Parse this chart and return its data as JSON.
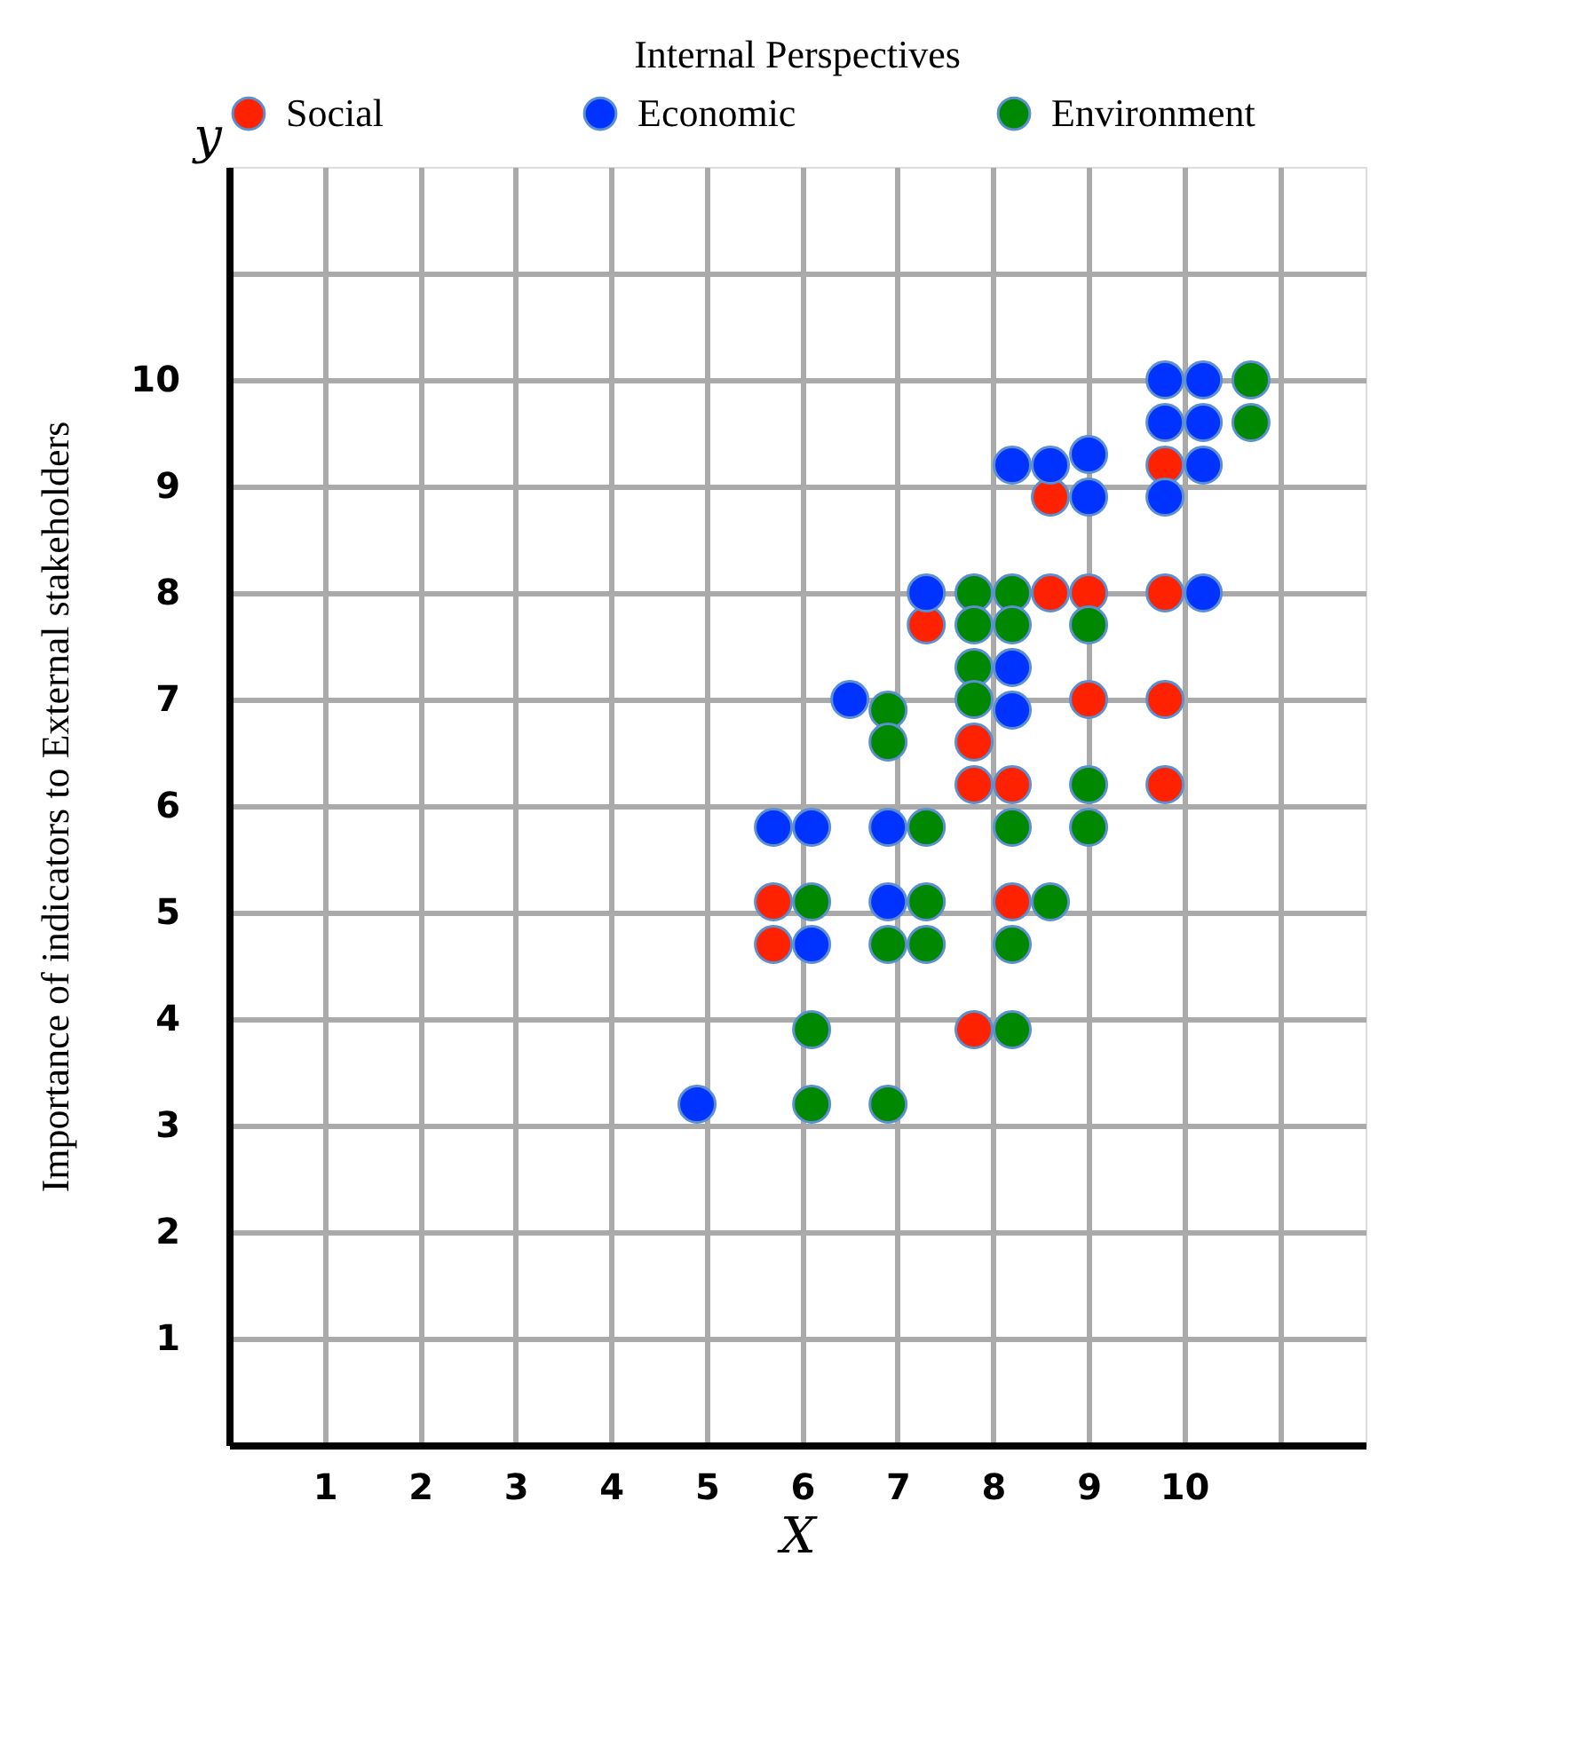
{
  "chart_data": {
    "type": "scatter",
    "title": "Internal Perspectives",
    "ylabel": "Importance of indicators to External stakeholders",
    "xlabel": "X",
    "annotations": [
      "y"
    ],
    "xlim": [
      0,
      11.9
    ],
    "ylim": [
      0,
      12
    ],
    "xticks": [
      1,
      2,
      3,
      4,
      5,
      6,
      7,
      8,
      9,
      10,
      {
        "value": 11,
        "label": null
      }
    ],
    "yticks": [
      1,
      2,
      3,
      4,
      5,
      6,
      7,
      8,
      9,
      10,
      {
        "value": 11,
        "label": null
      }
    ],
    "grid": true,
    "legend": "top",
    "marker": "circle",
    "series": [
      {
        "name": "Social",
        "color": "#ff2200",
        "x": [
          8.6,
          9.8,
          8.6,
          9.0,
          9.8,
          7.3,
          9.0,
          9.8,
          7.8,
          7.8,
          8.2,
          9.8,
          5.7,
          8.2,
          5.7,
          7.8
        ],
        "values": [
          8.9,
          9.2,
          8.0,
          8.0,
          8.0,
          7.7,
          7.0,
          7.0,
          6.6,
          6.2,
          6.2,
          6.2,
          5.1,
          5.1,
          4.7,
          3.9
        ]
      },
      {
        "name": "Economic",
        "color": "#0033ff",
        "x": [
          9.8,
          10.2,
          9.8,
          10.2,
          10.2,
          9.8,
          8.2,
          8.6,
          9.0,
          9.0,
          7.3,
          10.2,
          8.2,
          6.5,
          8.2,
          5.7,
          6.1,
          6.9,
          6.9,
          6.1,
          4.9
        ],
        "values": [
          10.0,
          10.0,
          9.6,
          9.6,
          9.2,
          8.9,
          9.2,
          9.2,
          9.3,
          8.9,
          8.0,
          8.0,
          7.3,
          7.0,
          6.9,
          5.8,
          5.8,
          5.8,
          5.1,
          4.7,
          3.2
        ]
      },
      {
        "name": "Environment",
        "color": "#008800",
        "x": [
          10.7,
          10.7,
          7.8,
          8.2,
          7.8,
          8.2,
          9.0,
          7.8,
          7.8,
          6.9,
          6.9,
          9.0,
          7.3,
          8.2,
          9.0,
          6.1,
          7.3,
          8.6,
          6.9,
          7.3,
          8.2,
          6.1,
          8.2,
          6.1,
          6.9
        ],
        "values": [
          10.0,
          9.6,
          8.0,
          8.0,
          7.7,
          7.7,
          7.7,
          7.3,
          7.0,
          6.9,
          6.6,
          6.2,
          5.8,
          5.8,
          5.8,
          5.1,
          5.1,
          5.1,
          4.7,
          4.7,
          4.7,
          3.9,
          3.9,
          3.2,
          3.2
        ]
      }
    ]
  }
}
